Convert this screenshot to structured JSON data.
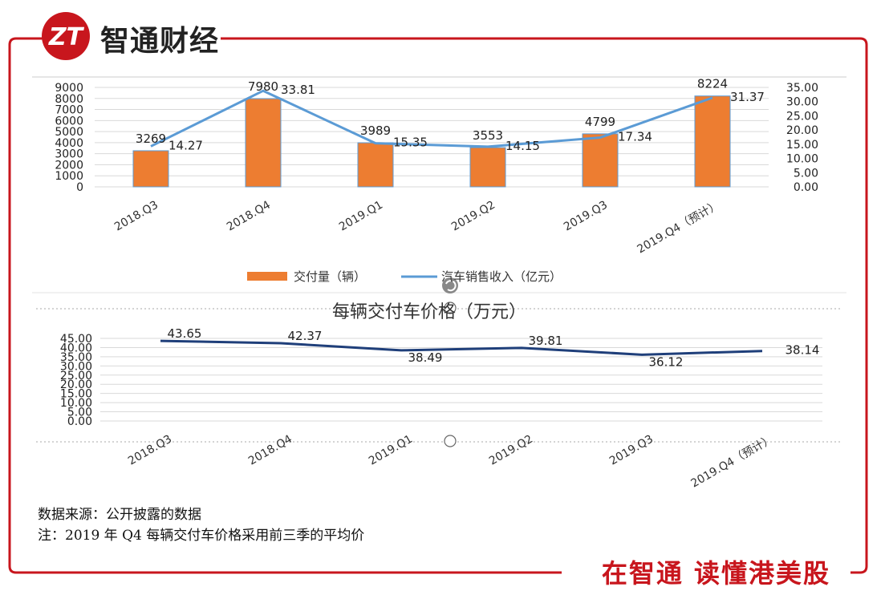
{
  "brand": {
    "name": "智通财经",
    "logo_text": "ZT",
    "slogan": "在智通 读懂港美股"
  },
  "colors": {
    "accent": "#c8161d",
    "bar": "#ed7d31",
    "line_top": "#5b9bd5",
    "line_bottom": "#1f3f7a"
  },
  "chart_data": [
    {
      "type": "bar",
      "categories": [
        "2018.Q3",
        "2018.Q4",
        "2019.Q1",
        "2019.Q2",
        "2019.Q3",
        "2019.Q4（预计）"
      ],
      "series": [
        {
          "name": "交付量（辆）",
          "type": "bar",
          "axis": "left",
          "values": [
            3269,
            7980,
            3989,
            3553,
            4799,
            8224
          ]
        },
        {
          "name": "汽车销售收入（亿元）",
          "type": "line",
          "axis": "right",
          "values": [
            14.27,
            33.81,
            15.35,
            14.15,
            17.34,
            31.37
          ]
        }
      ],
      "left_ticks": [
        "0",
        "1000",
        "2000",
        "3000",
        "4000",
        "5000",
        "6000",
        "7000",
        "8000",
        "9000"
      ],
      "right_ticks": [
        "0.00",
        "5.00",
        "10.00",
        "15.00",
        "20.00",
        "25.00",
        "30.00",
        "35.00"
      ],
      "ylim": [
        0,
        9000
      ],
      "y2lim": [
        0,
        35
      ],
      "legend": "bottom",
      "grid": true
    },
    {
      "type": "line",
      "title": "每辆交付车价格（万元）",
      "categories": [
        "2018.Q3",
        "2018.Q4",
        "2019.Q1",
        "2019.Q2",
        "2019.Q3",
        "2019.Q4（预计）"
      ],
      "values": [
        43.65,
        42.37,
        38.49,
        39.81,
        36.12,
        38.14
      ],
      "labels": [
        "43.65",
        "42.37",
        "38.49",
        "39.81",
        "36.12",
        "38.14"
      ],
      "y_ticks": [
        "0.00",
        "5.00",
        "10.00",
        "15.00",
        "20.00",
        "25.00",
        "30.00",
        "35.00",
        "40.00",
        "45.00"
      ],
      "ylim": [
        0,
        45
      ],
      "grid": true
    }
  ],
  "notes": {
    "source": "数据来源：公开披露的数据",
    "note": "注：2019 年 Q4 每辆交付车价格采用前三季的平均价"
  }
}
